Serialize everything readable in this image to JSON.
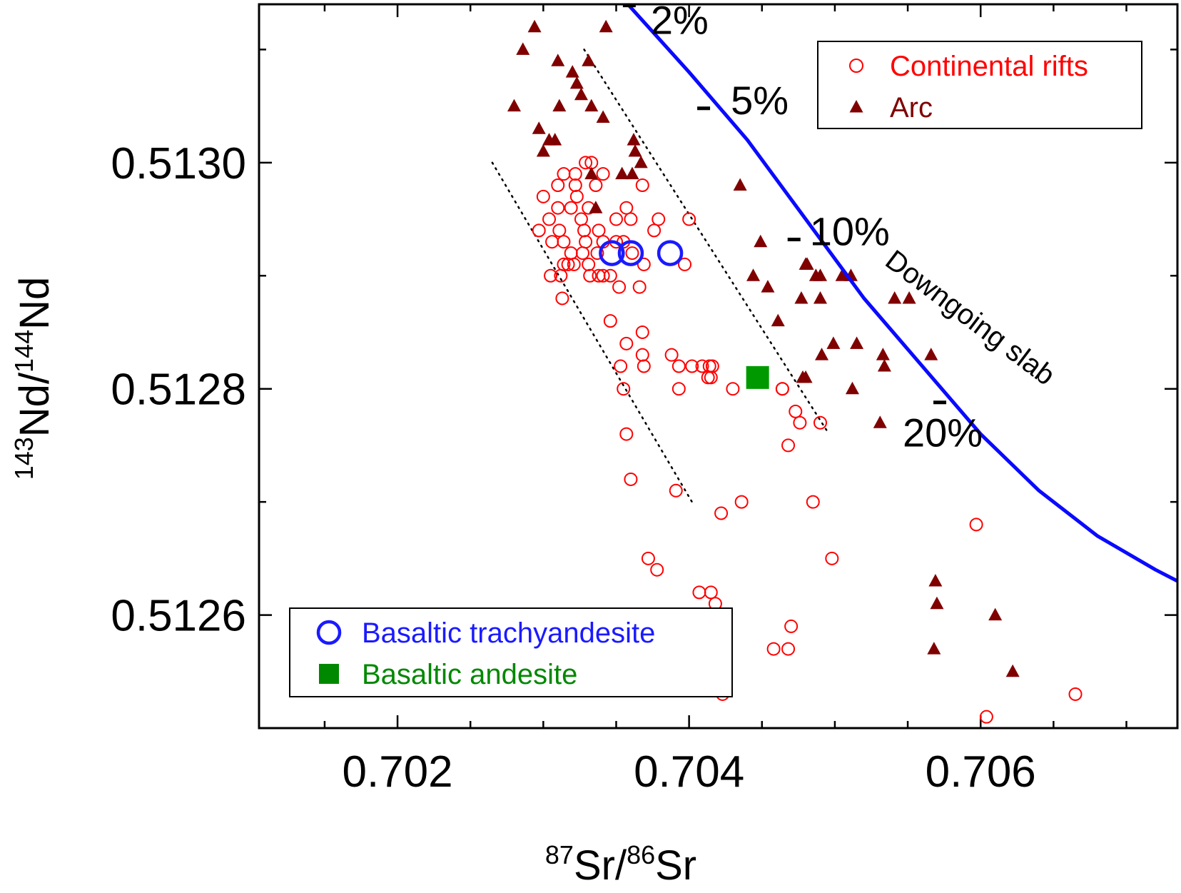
{
  "chart_data": {
    "type": "scatter",
    "xlabel": {
      "sup1": "87",
      "main1": "Sr/",
      "sup2": "86",
      "main2": "Sr"
    },
    "ylabel": {
      "sup1": "143",
      "main1": "Nd/",
      "sup2": "144",
      "main2": "Nd"
    },
    "xlim": [
      0.70105,
      0.70735
    ],
    "ylim": [
      0.5125,
      0.51314
    ],
    "x_ticks": [
      "0.702",
      "0.704",
      "0.706"
    ],
    "x_tick_values": [
      0.702,
      0.704,
      0.706
    ],
    "x_minor_step": 0.0005,
    "y_ticks": [
      "0.5126",
      "0.5128",
      "0.5130"
    ],
    "y_tick_values": [
      0.5126,
      0.5128,
      0.513
    ],
    "y_minor_step": 0.0001,
    "grid": false,
    "colors": {
      "rift": "#ff0000",
      "arc": "#800000",
      "trachy": "#1a1aff",
      "andesite": "#009900",
      "slab": "#0a0aff",
      "legend_rift": "#ff0000",
      "legend_arc": "#800000",
      "legend_trachy": "#1a1aff",
      "legend_andesite": "#008800"
    },
    "legends": [
      {
        "placement": "top-right",
        "entries": [
          {
            "label": "Continental rifts",
            "marker": "open-circle",
            "color_key": "legend_rift"
          },
          {
            "label": "Arc",
            "marker": "triangle",
            "color_key": "legend_arc"
          }
        ]
      },
      {
        "placement": "bottom-left",
        "entries": [
          {
            "label": "Basaltic trachyandesite",
            "marker": "open-circle",
            "color_key": "legend_trachy"
          },
          {
            "label": "Basaltic andesite",
            "marker": "square",
            "color_key": "legend_andesite"
          }
        ]
      }
    ],
    "slab_curve": {
      "label": "Downgoing slab",
      "points": [
        [
          0.70358,
          0.51314
        ],
        [
          0.704,
          0.51308
        ],
        [
          0.7044,
          0.51302
        ],
        [
          0.7048,
          0.51295
        ],
        [
          0.7052,
          0.51288
        ],
        [
          0.7056,
          0.51282
        ],
        [
          0.706,
          0.51276
        ],
        [
          0.7064,
          0.51271
        ],
        [
          0.7068,
          0.51267
        ],
        [
          0.7072,
          0.51264
        ],
        [
          0.70735,
          0.51263
        ]
      ],
      "marks": [
        {
          "label": "2%",
          "x": 0.70359,
          "y": 0.513139
        },
        {
          "label": "5%",
          "x": 0.7041,
          "y": 0.513048
        },
        {
          "label": "10%",
          "x": 0.70472,
          "y": 0.512932
        },
        {
          "label": "20%",
          "x": 0.70572,
          "y": 0.512788
        }
      ]
    },
    "dotted_lines": [
      [
        [
          0.70265,
          0.513
        ],
        [
          0.70402,
          0.5127
        ]
      ],
      [
        [
          0.70328,
          0.5131
        ],
        [
          0.70496,
          0.51276
        ]
      ]
    ],
    "series": [
      {
        "name": "Continental rifts",
        "marker": "open-circle",
        "color_key": "rift",
        "points": [
          [
            0.70329,
            0.513
          ],
          [
            0.70322,
            0.51299
          ],
          [
            0.70333,
            0.513
          ],
          [
            0.7031,
            0.51298
          ],
          [
            0.70314,
            0.51299
          ],
          [
            0.70322,
            0.51298
          ],
          [
            0.70341,
            0.51299
          ],
          [
            0.70368,
            0.51298
          ],
          [
            0.703,
            0.51297
          ],
          [
            0.70319,
            0.51296
          ],
          [
            0.70336,
            0.51298
          ],
          [
            0.70323,
            0.51297
          ],
          [
            0.70331,
            0.51296
          ],
          [
            0.70326,
            0.51295
          ],
          [
            0.70304,
            0.51295
          ],
          [
            0.7031,
            0.51296
          ],
          [
            0.7035,
            0.51295
          ],
          [
            0.70357,
            0.51296
          ],
          [
            0.70328,
            0.51294
          ],
          [
            0.70338,
            0.51294
          ],
          [
            0.70311,
            0.51294
          ],
          [
            0.70314,
            0.51293
          ],
          [
            0.70297,
            0.51294
          ],
          [
            0.7036,
            0.51295
          ],
          [
            0.70379,
            0.51295
          ],
          [
            0.70376,
            0.51294
          ],
          [
            0.704,
            0.51295
          ],
          [
            0.70306,
            0.51293
          ],
          [
            0.70329,
            0.51293
          ],
          [
            0.70341,
            0.51293
          ],
          [
            0.7035,
            0.51293
          ],
          [
            0.70361,
            0.51292
          ],
          [
            0.70355,
            0.51293
          ],
          [
            0.70319,
            0.51292
          ],
          [
            0.70321,
            0.51291
          ],
          [
            0.70337,
            0.51292
          ],
          [
            0.70331,
            0.51291
          ],
          [
            0.70317,
            0.51291
          ],
          [
            0.70314,
            0.51291
          ],
          [
            0.70327,
            0.51292
          ],
          [
            0.70346,
            0.5129
          ],
          [
            0.70341,
            0.5129
          ],
          [
            0.70369,
            0.51291
          ],
          [
            0.70397,
            0.51291
          ],
          [
            0.70305,
            0.5129
          ],
          [
            0.70312,
            0.5129
          ],
          [
            0.70332,
            0.5129
          ],
          [
            0.70338,
            0.5129
          ],
          [
            0.70352,
            0.51289
          ],
          [
            0.70366,
            0.51289
          ],
          [
            0.70313,
            0.51288
          ],
          [
            0.70346,
            0.51286
          ],
          [
            0.70357,
            0.51284
          ],
          [
            0.70368,
            0.51285
          ],
          [
            0.70368,
            0.51283
          ],
          [
            0.70369,
            0.51282
          ],
          [
            0.70353,
            0.51282
          ],
          [
            0.70388,
            0.51283
          ],
          [
            0.70393,
            0.51282
          ],
          [
            0.70402,
            0.51282
          ],
          [
            0.70409,
            0.51282
          ],
          [
            0.70414,
            0.51282
          ],
          [
            0.70416,
            0.51282
          ],
          [
            0.70415,
            0.51281
          ],
          [
            0.70413,
            0.51281
          ],
          [
            0.70355,
            0.5128
          ],
          [
            0.70393,
            0.5128
          ],
          [
            0.7043,
            0.5128
          ],
          [
            0.70464,
            0.5128
          ],
          [
            0.70464,
            0.5128
          ],
          [
            0.70473,
            0.51278
          ],
          [
            0.70476,
            0.51277
          ],
          [
            0.7049,
            0.51277
          ],
          [
            0.70357,
            0.51276
          ],
          [
            0.70468,
            0.51275
          ],
          [
            0.7036,
            0.51272
          ],
          [
            0.70391,
            0.51271
          ],
          [
            0.70436,
            0.5127
          ],
          [
            0.70422,
            0.51269
          ],
          [
            0.70485,
            0.5127
          ],
          [
            0.70372,
            0.51265
          ],
          [
            0.70378,
            0.51264
          ],
          [
            0.70498,
            0.51265
          ],
          [
            0.70597,
            0.51268
          ],
          [
            0.70407,
            0.51262
          ],
          [
            0.70415,
            0.51262
          ],
          [
            0.70418,
            0.51261
          ],
          [
            0.7047,
            0.51259
          ],
          [
            0.70468,
            0.51257
          ],
          [
            0.70458,
            0.51257
          ],
          [
            0.70423,
            0.51253
          ],
          [
            0.70604,
            0.51251
          ],
          [
            0.70665,
            0.51253
          ]
        ]
      },
      {
        "name": "Arc",
        "marker": "triangle",
        "color_key": "arc",
        "points": [
          [
            0.70294,
            0.51312
          ],
          [
            0.70343,
            0.51312
          ],
          [
            0.70286,
            0.5131
          ],
          [
            0.7031,
            0.51309
          ],
          [
            0.7032,
            0.51308
          ],
          [
            0.70331,
            0.51309
          ],
          [
            0.70323,
            0.51307
          ],
          [
            0.70326,
            0.51306
          ],
          [
            0.70333,
            0.51305
          ],
          [
            0.7028,
            0.51305
          ],
          [
            0.70311,
            0.51305
          ],
          [
            0.70341,
            0.51304
          ],
          [
            0.70297,
            0.51303
          ],
          [
            0.70304,
            0.51302
          ],
          [
            0.70308,
            0.51302
          ],
          [
            0.70362,
            0.51302
          ],
          [
            0.70363,
            0.51301
          ],
          [
            0.70367,
            0.513
          ],
          [
            0.703,
            0.51301
          ],
          [
            0.70333,
            0.51299
          ],
          [
            0.70354,
            0.51299
          ],
          [
            0.70361,
            0.51299
          ],
          [
            0.70336,
            0.51296
          ],
          [
            0.70435,
            0.51298
          ],
          [
            0.70449,
            0.51293
          ],
          [
            0.7048,
            0.51291
          ],
          [
            0.70481,
            0.51291
          ],
          [
            0.70444,
            0.5129
          ],
          [
            0.70487,
            0.5129
          ],
          [
            0.7049,
            0.5129
          ],
          [
            0.70505,
            0.5129
          ],
          [
            0.70511,
            0.5129
          ],
          [
            0.70454,
            0.51289
          ],
          [
            0.70477,
            0.51288
          ],
          [
            0.7049,
            0.51288
          ],
          [
            0.70541,
            0.51288
          ],
          [
            0.70551,
            0.51288
          ],
          [
            0.70461,
            0.51286
          ],
          [
            0.70499,
            0.51284
          ],
          [
            0.70491,
            0.51283
          ],
          [
            0.70515,
            0.51284
          ],
          [
            0.70533,
            0.51283
          ],
          [
            0.70534,
            0.51282
          ],
          [
            0.70566,
            0.51283
          ],
          [
            0.70478,
            0.51281
          ],
          [
            0.7048,
            0.51281
          ],
          [
            0.70512,
            0.5128
          ],
          [
            0.70531,
            0.51277
          ],
          [
            0.70569,
            0.51263
          ],
          [
            0.7057,
            0.51261
          ],
          [
            0.7061,
            0.5126
          ],
          [
            0.70568,
            0.51257
          ],
          [
            0.70622,
            0.51255
          ]
        ]
      },
      {
        "name": "Basaltic trachyandesite",
        "marker": "open-circle-large",
        "color_key": "trachy",
        "points": [
          [
            0.70347,
            0.51292
          ],
          [
            0.7036,
            0.51292
          ],
          [
            0.70387,
            0.51292
          ]
        ]
      },
      {
        "name": "Basaltic andesite",
        "marker": "square",
        "color_key": "andesite",
        "points": [
          [
            0.70447,
            0.51281
          ]
        ]
      }
    ]
  }
}
